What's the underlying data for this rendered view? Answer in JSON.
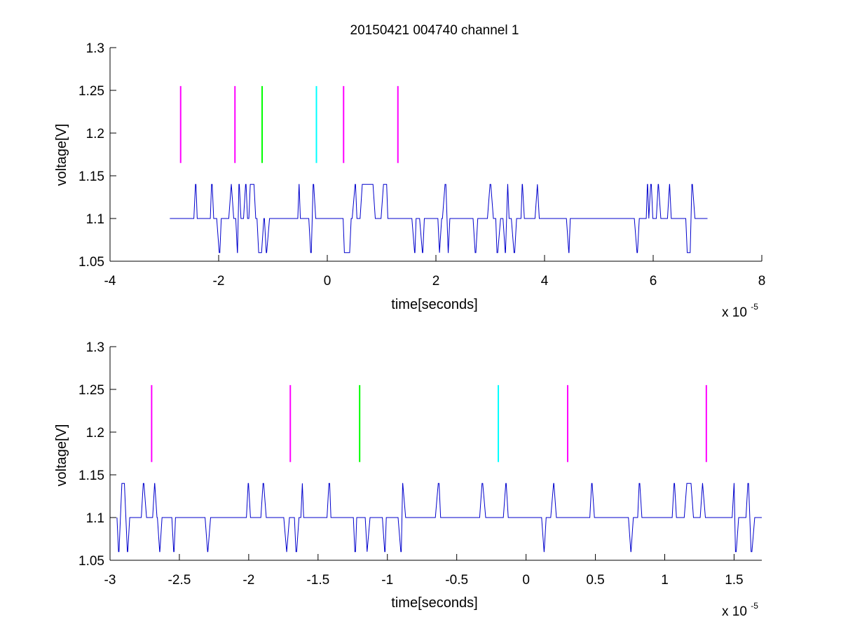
{
  "chart_data": [
    {
      "type": "line",
      "title": "20150421 004740 channel 1",
      "xlabel": "time[seconds]",
      "ylabel": "voltage[V]",
      "x_exponent_label": "x 10",
      "x_exponent": "-5",
      "xlim": [
        -4,
        8
      ],
      "ylim": [
        1.05,
        1.3
      ],
      "x_ticks": [
        -4,
        -2,
        0,
        2,
        4,
        6,
        8
      ],
      "x_tick_labels": [
        "-4",
        "-2",
        "0",
        "2",
        "4",
        "6",
        "8"
      ],
      "y_ticks": [
        1.05,
        1.1,
        1.15,
        1.2,
        1.25,
        1.3
      ],
      "y_tick_labels": [
        "1.05",
        "1.1",
        "1.15",
        "1.2",
        "1.25",
        "1.3"
      ],
      "grid": false,
      "signal": {
        "color": "#0000cc",
        "x_start": -2.9,
        "x_end": 7.0,
        "baseline": 1.1,
        "high": 1.14,
        "low": 1.06,
        "seed": 11,
        "density": 1.0,
        "upper_quiet": [
          [
            -0.1,
            0.1
          ],
          [
            1.3,
            1.7
          ],
          [
            5.2,
            5.4
          ]
        ],
        "lower_quiet": [
          [
            -2.95,
            -2.8
          ],
          [
            4.7,
            5.0
          ],
          [
            7.0,
            7.2
          ]
        ]
      },
      "markers": [
        {
          "x": -2.7,
          "y0": 1.165,
          "y1": 1.255,
          "color": "#ff00ff"
        },
        {
          "x": -1.7,
          "y0": 1.165,
          "y1": 1.255,
          "color": "#ff00ff"
        },
        {
          "x": -1.2,
          "y0": 1.165,
          "y1": 1.255,
          "color": "#00ff00"
        },
        {
          "x": -0.2,
          "y0": 1.165,
          "y1": 1.255,
          "color": "#00ffff"
        },
        {
          "x": 0.3,
          "y0": 1.165,
          "y1": 1.255,
          "color": "#ff00ff"
        },
        {
          "x": 1.3,
          "y0": 1.165,
          "y1": 1.255,
          "color": "#ff00ff"
        }
      ]
    },
    {
      "type": "line",
      "title": "",
      "xlabel": "time[seconds]",
      "ylabel": "voltage[V]",
      "x_exponent_label": "x 10",
      "x_exponent": "-5",
      "xlim": [
        -3.0,
        1.7
      ],
      "ylim": [
        1.05,
        1.3
      ],
      "x_ticks": [
        -3,
        -2.5,
        -2,
        -1.5,
        -1,
        -0.5,
        0,
        0.5,
        1,
        1.5
      ],
      "x_tick_labels": [
        "-3",
        "-2.5",
        "-2",
        "-1.5",
        "-1",
        "-0.5",
        "0",
        "0.5",
        "1",
        "1.5"
      ],
      "y_ticks": [
        1.05,
        1.1,
        1.15,
        1.2,
        1.25,
        1.3
      ],
      "y_tick_labels": [
        "1.05",
        "1.1",
        "1.15",
        "1.2",
        "1.25",
        "1.3"
      ],
      "grid": false,
      "signal": {
        "color": "#0000cc",
        "x_start": -2.95,
        "x_end": 1.7,
        "baseline": 1.1,
        "high": 1.14,
        "low": 1.06,
        "seed": 7,
        "density": 0.55,
        "upper_quiet": [],
        "lower_quiet": []
      },
      "markers": [
        {
          "x": -2.7,
          "y0": 1.165,
          "y1": 1.255,
          "color": "#ff00ff"
        },
        {
          "x": -1.7,
          "y0": 1.165,
          "y1": 1.255,
          "color": "#ff00ff"
        },
        {
          "x": -1.2,
          "y0": 1.165,
          "y1": 1.255,
          "color": "#00ff00"
        },
        {
          "x": -0.2,
          "y0": 1.165,
          "y1": 1.255,
          "color": "#00ffff"
        },
        {
          "x": 0.3,
          "y0": 1.165,
          "y1": 1.255,
          "color": "#ff00ff"
        },
        {
          "x": 1.3,
          "y0": 1.165,
          "y1": 1.255,
          "color": "#ff00ff"
        }
      ]
    }
  ]
}
